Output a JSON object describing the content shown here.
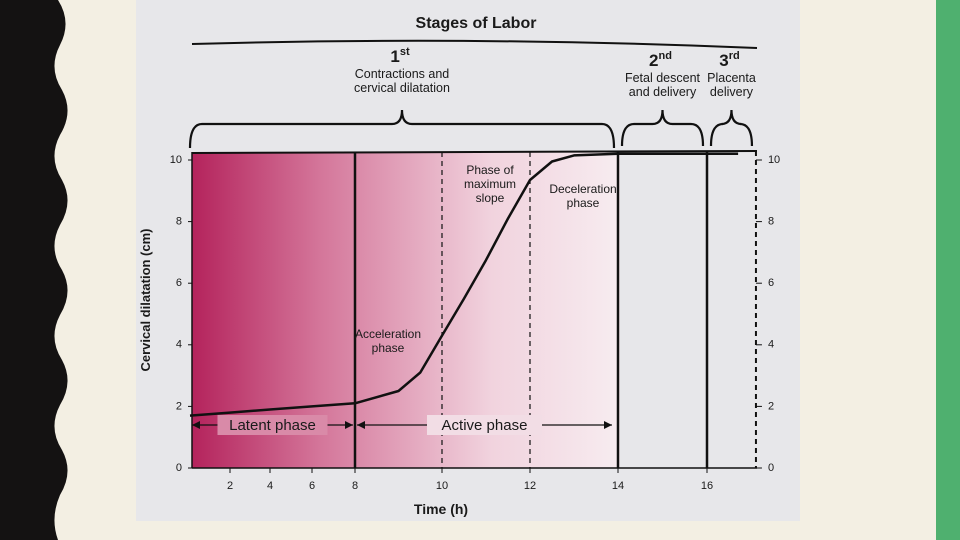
{
  "chart_data": {
    "type": "line",
    "title": "Stages of Labor",
    "x_label": "Time (h)",
    "y_label": "Cervical dilatation (cm)",
    "x": [
      0,
      2,
      4,
      6,
      8,
      9,
      9.5,
      10,
      10.5,
      11,
      11.5,
      12,
      12.5,
      13,
      14,
      16,
      16.7
    ],
    "series": [
      {
        "color": "#111111",
        "values": [
          1.7,
          1.8,
          1.9,
          2.0,
          2.1,
          2.5,
          3.1,
          4.3,
          5.5,
          6.75,
          8.1,
          9.35,
          9.95,
          10.15,
          10.2,
          10.2,
          10.2
        ]
      }
    ],
    "xlim": [
      0,
      17.1
    ],
    "xticks": [
      2,
      4,
      6,
      8,
      10,
      12,
      14,
      16
    ],
    "ylim": [
      0,
      10
    ],
    "yticks": [
      0,
      2,
      4,
      6,
      8,
      10
    ],
    "y2lim": [
      0,
      10
    ],
    "y2ticks": [
      0,
      2,
      4,
      6,
      8,
      10
    ],
    "stages": [
      {
        "number": "1",
        "suffix": "st",
        "lines": [
          "Contractions and",
          "cervical dilatation"
        ],
        "start": 0,
        "end": 14
      },
      {
        "number": "2",
        "suffix": "nd",
        "lines": [
          "Fetal descent",
          "and delivery"
        ],
        "start": 14,
        "end": 16
      },
      {
        "number": "3",
        "suffix": "rd",
        "lines": [
          "Placenta",
          "delivery"
        ],
        "start": 16,
        "end": 17.1
      }
    ],
    "boundaries": [
      {
        "x": 8,
        "style": "solid"
      },
      {
        "x": 10,
        "style": "dashed"
      },
      {
        "x": 12,
        "style": "dashed"
      },
      {
        "x": 14,
        "style": "solid"
      },
      {
        "x": 16,
        "style": "solid"
      }
    ],
    "phases": [
      {
        "label": "Latent phase",
        "start": 0,
        "end": 8
      },
      {
        "label": "Active phase",
        "start": 8,
        "end": 14
      }
    ],
    "annotations": [
      {
        "lines": [
          "Phase of",
          "maximum",
          "slope"
        ]
      },
      {
        "lines": [
          "Deceleration",
          "phase"
        ]
      },
      {
        "lines": [
          "Acceleration",
          "phase"
        ]
      }
    ]
  }
}
